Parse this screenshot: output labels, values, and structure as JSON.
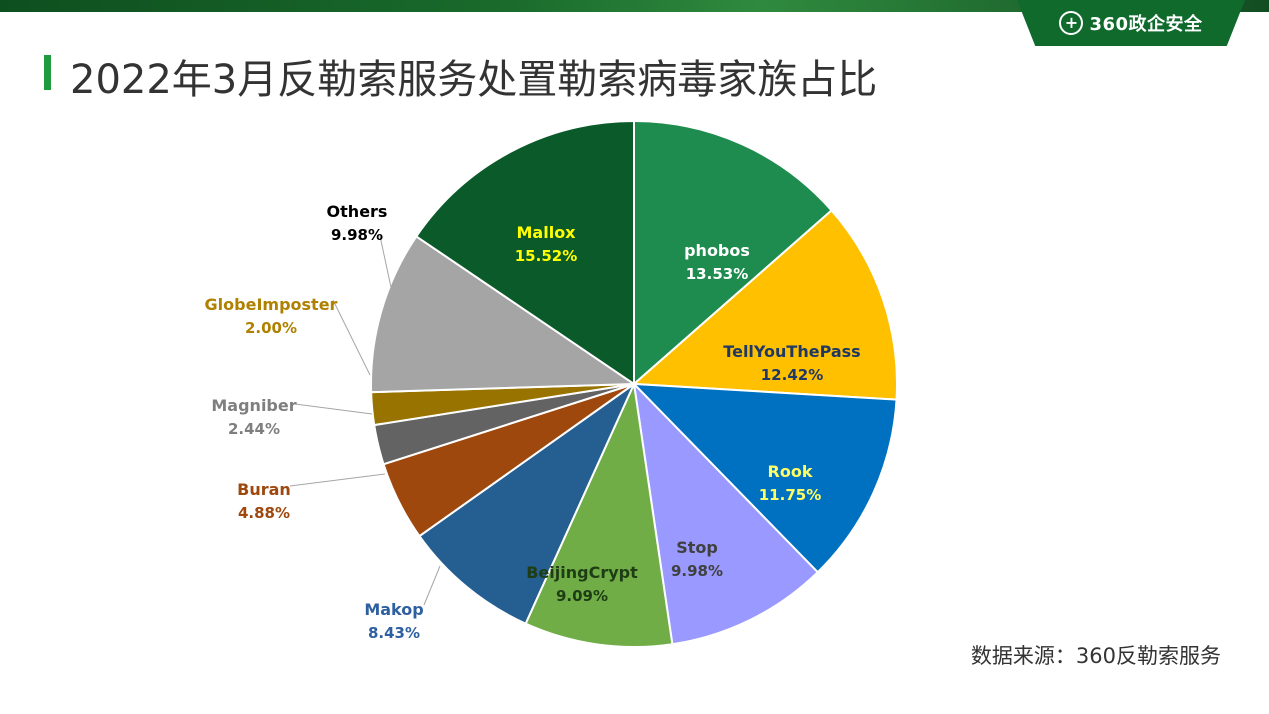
{
  "header": {
    "logo_text": "360政企安全",
    "logo_symbol": "+",
    "title": "2022年3月反勒索服务处置勒索病毒家族占比"
  },
  "footer": {
    "source": "数据来源：360反勒索服务"
  },
  "chart_data": {
    "type": "pie",
    "title": "2022年3月反勒索服务处置勒索病毒家族占比",
    "start": "top",
    "direction": "clockwise",
    "slices": [
      {
        "name": "phobos",
        "value": 13.53,
        "pct_label": "13.53%",
        "color": "#1e8c4e",
        "label_color": "#ffffff"
      },
      {
        "name": "TellYouThePass",
        "value": 12.42,
        "pct_label": "12.42%",
        "color": "#ffc000",
        "label_color": "#1f3864"
      },
      {
        "name": "Rook",
        "value": 11.75,
        "pct_label": "11.75%",
        "color": "#0070c0",
        "label_color": "#ffff66"
      },
      {
        "name": "Stop",
        "value": 9.98,
        "pct_label": "9.98%",
        "color": "#9999ff",
        "label_color": "#404040"
      },
      {
        "name": "BeijingCrypt",
        "value": 9.09,
        "pct_label": "9.09%",
        "color": "#70ad47",
        "label_color": "#1e3d14"
      },
      {
        "name": "Makop",
        "value": 8.43,
        "pct_label": "8.43%",
        "color": "#255e91",
        "label_color": "#2e5fa0"
      },
      {
        "name": "Buran",
        "value": 4.88,
        "pct_label": "4.88%",
        "color": "#9e480e",
        "label_color": "#9e480e"
      },
      {
        "name": "Magniber",
        "value": 2.44,
        "pct_label": "2.44%",
        "color": "#636363",
        "label_color": "#7f7f7f"
      },
      {
        "name": "GlobeImposter",
        "value": 2.0,
        "pct_label": "2.00%",
        "color": "#997300",
        "label_color": "#b08000"
      },
      {
        "name": "Others",
        "value": 9.98,
        "pct_label": "9.98%",
        "color": "#a5a5a5",
        "label_color": "#000000"
      },
      {
        "name": "Mallox",
        "value": 15.52,
        "pct_label": "15.52%",
        "color": "#0b5a2a",
        "label_color": "#ffff00"
      }
    ],
    "label_positions": {
      "phobos": "inside",
      "TellYouThePass": "inside",
      "Rook": "inside",
      "Stop": "inside",
      "BeijingCrypt": "inside",
      "Mallox": "inside",
      "Makop": "outside",
      "Buran": "outside",
      "Magniber": "outside",
      "GlobeImposter": "outside",
      "Others": "outside"
    }
  }
}
